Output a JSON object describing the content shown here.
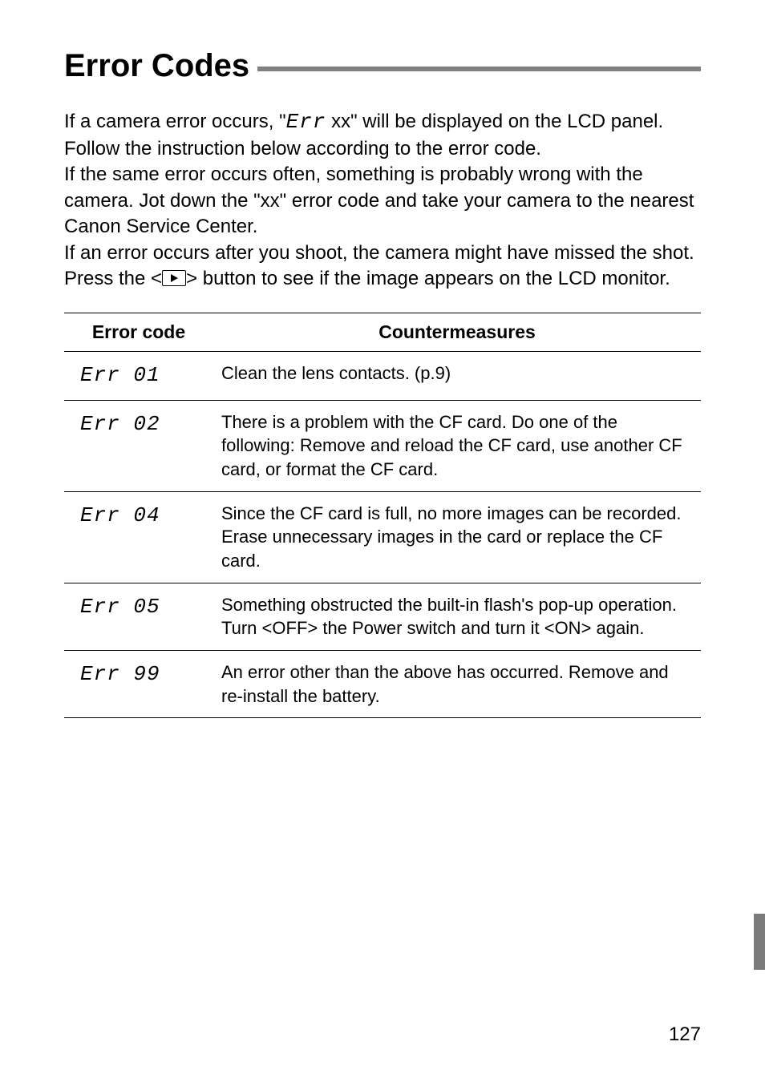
{
  "title": "Error Codes",
  "intro": {
    "p1a": "If a camera error occurs, \"",
    "errGlyph": "Err",
    "p1b": " xx\" will be displayed on the LCD panel. Follow the instruction below according to the error code.",
    "p2": "If the same error occurs often, something is probably wrong with the camera. Jot down the \"xx\" error code and take your camera to the nearest Canon Service Center.",
    "p3a": "If an error occurs after you shoot, the camera might have missed the shot. Press the  <",
    "p3b": "> button to see if the image appears on the LCD monitor."
  },
  "table": {
    "headers": {
      "code": "Error code",
      "counter": "Countermeasures"
    },
    "rows": [
      {
        "code": "Err 01",
        "text": "Clean the lens contacts. (p.9)"
      },
      {
        "code": "Err 02",
        "text": "There is a problem with the CF card. Do one of the following: Remove and reload the CF card, use another CF card, or  format the CF card."
      },
      {
        "code": "Err 04",
        "text": "Since the CF card is full, no more images can be recorded. Erase unnecessary images in the card or replace the CF card."
      },
      {
        "code": "Err 05",
        "text_a": "Something obstructed the built-in flash's pop-up operation.",
        "text_b1": "Turn <",
        "off": "OFF",
        "text_b2": "> the Power switch and turn it <",
        "on": "ON",
        "text_b3": "> again."
      },
      {
        "code": "Err 99",
        "text": "An error other than the above has occurred. Remove and re-install the battery."
      }
    ]
  },
  "pageNumber": "127"
}
